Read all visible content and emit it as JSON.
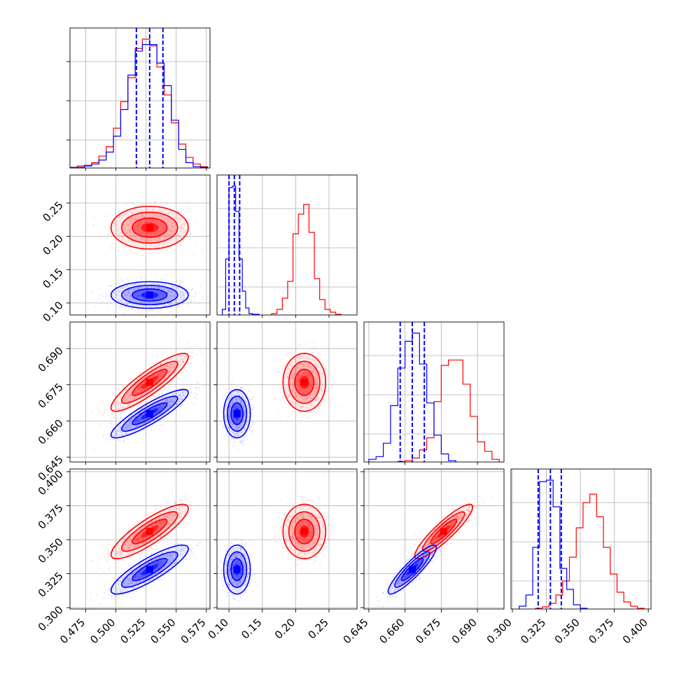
{
  "chart_data": {
    "type": "corner",
    "grid": true,
    "parameters": [
      {
        "ticks": [
          0.475,
          0.5,
          0.525,
          0.55,
          0.575
        ],
        "tick_labels": [
          "0.475",
          "0.500",
          "0.525",
          "0.550",
          "0.575"
        ],
        "range": [
          0.462,
          0.578
        ]
      },
      {
        "ticks": [
          0.1,
          0.15,
          0.2,
          0.25
        ],
        "tick_labels": [
          "0.10",
          "0.15",
          "0.20",
          "0.25"
        ],
        "range": [
          0.082,
          0.292
        ]
      },
      {
        "ticks": [
          0.645,
          0.66,
          0.675,
          0.69
        ],
        "tick_labels": [
          "0.645",
          "0.660",
          "0.675",
          "0.690"
        ],
        "range": [
          0.643,
          0.701
        ]
      },
      {
        "ticks": [
          0.3,
          0.325,
          0.35,
          0.375,
          0.4
        ],
        "tick_labels": [
          "0.300",
          "0.325",
          "0.350",
          "0.375",
          "0.400"
        ],
        "range": [
          0.299,
          0.402
        ]
      }
    ],
    "series": [
      {
        "color": "#ff0000",
        "mean": [
          0.528,
          0.213,
          0.676,
          0.356
        ],
        "sd": [
          0.016,
          0.016,
          0.006,
          0.01
        ],
        "corr": [
          [
            1,
            0,
            0.88,
            0.85
          ],
          [
            0,
            1,
            0,
            0
          ],
          [
            0.88,
            0,
            1,
            0.9
          ],
          [
            0.85,
            0,
            0.9,
            1
          ]
        ],
        "histograms": [
          {
            "edges": [
              0.462,
              0.468,
              0.474,
              0.48,
              0.486,
              0.492,
              0.498,
              0.504,
              0.51,
              0.516,
              0.522,
              0.528,
              0.534,
              0.54,
              0.546,
              0.552,
              0.558,
              0.564,
              0.57,
              0.576
            ],
            "counts": [
              0.5,
              1.5,
              2,
              4,
              9,
              16,
              30,
              50,
              68,
              90,
              97,
              92,
              76,
              55,
              34,
              18,
              8,
              3,
              1
            ]
          },
          {
            "edges": [
              0.164,
              0.172,
              0.18,
              0.188,
              0.196,
              0.204,
              0.212,
              0.22,
              0.228,
              0.236,
              0.244,
              0.252,
              0.26,
              0.268
            ],
            "counts": [
              1,
              4,
              12,
              24,
              58,
              72,
              79,
              59,
              26,
              11,
              4,
              2,
              0.5
            ]
          },
          {
            "edges": [
              0.657,
              0.66,
              0.663,
              0.666,
              0.669,
              0.672,
              0.675,
              0.678,
              0.681,
              0.684,
              0.687,
              0.69,
              0.693,
              0.696,
              0.699
            ],
            "counts": [
              0.5,
              1,
              3,
              9,
              18,
              45,
              72,
              76,
              76,
              58,
              34,
              15,
              8,
              2
            ]
          },
          {
            "edges": [
              0.317,
              0.322,
              0.327,
              0.332,
              0.337,
              0.342,
              0.347,
              0.352,
              0.357,
              0.362,
              0.367,
              0.372,
              0.377,
              0.382,
              0.387,
              0.392,
              0.397
            ],
            "counts": [
              0.5,
              1.5,
              4,
              10,
              20,
              37,
              58,
              76,
              82,
              66,
              44,
              25,
              12,
              5,
              2,
              0.5
            ]
          }
        ]
      },
      {
        "color": "#0000ff",
        "mean": [
          0.528,
          0.112,
          0.663,
          0.328
        ],
        "sd": [
          0.016,
          0.01,
          0.005,
          0.009
        ],
        "corr": [
          [
            1,
            0,
            0.88,
            0.85
          ],
          [
            0,
            1,
            0,
            0
          ],
          [
            0.88,
            0,
            1,
            0.9
          ],
          [
            0.85,
            0,
            0.9,
            1
          ]
        ],
        "histograms": [
          {
            "edges": [
              0.462,
              0.468,
              0.474,
              0.48,
              0.486,
              0.492,
              0.498,
              0.504,
              0.51,
              0.516,
              0.522,
              0.528,
              0.534,
              0.54,
              0.546,
              0.552,
              0.558,
              0.564,
              0.57,
              0.576
            ],
            "counts": [
              0.5,
              0.5,
              1.5,
              3,
              6,
              12,
              24,
              44,
              70,
              88,
              93,
              93,
              79,
              62,
              36,
              14,
              4,
              1,
              0.5
            ]
          },
          {
            "edges": [
              0.09,
              0.095,
              0.1,
              0.105,
              0.11,
              0.115,
              0.12,
              0.125,
              0.13,
              0.135,
              0.14,
              0.145
            ],
            "counts": [
              4,
              40,
              91,
              92,
              74,
              40,
              17,
              5,
              1,
              0.5,
              0.5
            ]
          },
          {
            "edges": [
              0.645,
              0.648,
              0.651,
              0.654,
              0.657,
              0.66,
              0.663,
              0.666,
              0.669,
              0.672,
              0.675,
              0.678,
              0.681
            ],
            "counts": [
              2,
              4,
              14,
              42,
              70,
              90,
              96,
              73,
              44,
              20,
              6,
              1
            ]
          },
          {
            "edges": [
              0.305,
              0.31,
              0.315,
              0.32,
              0.325,
              0.33,
              0.335,
              0.34,
              0.345,
              0.35,
              0.355
            ],
            "counts": [
              2,
              10,
              44,
              91,
              92,
              73,
              29,
              14,
              3,
              0.5
            ]
          }
        ],
        "quantiles": [
          [
            0.517,
            0.528,
            0.539
          ],
          [
            0.1,
            0.108,
            0.116
          ],
          [
            0.658,
            0.663,
            0.668
          ],
          [
            0.319,
            0.328,
            0.336
          ]
        ]
      }
    ]
  }
}
